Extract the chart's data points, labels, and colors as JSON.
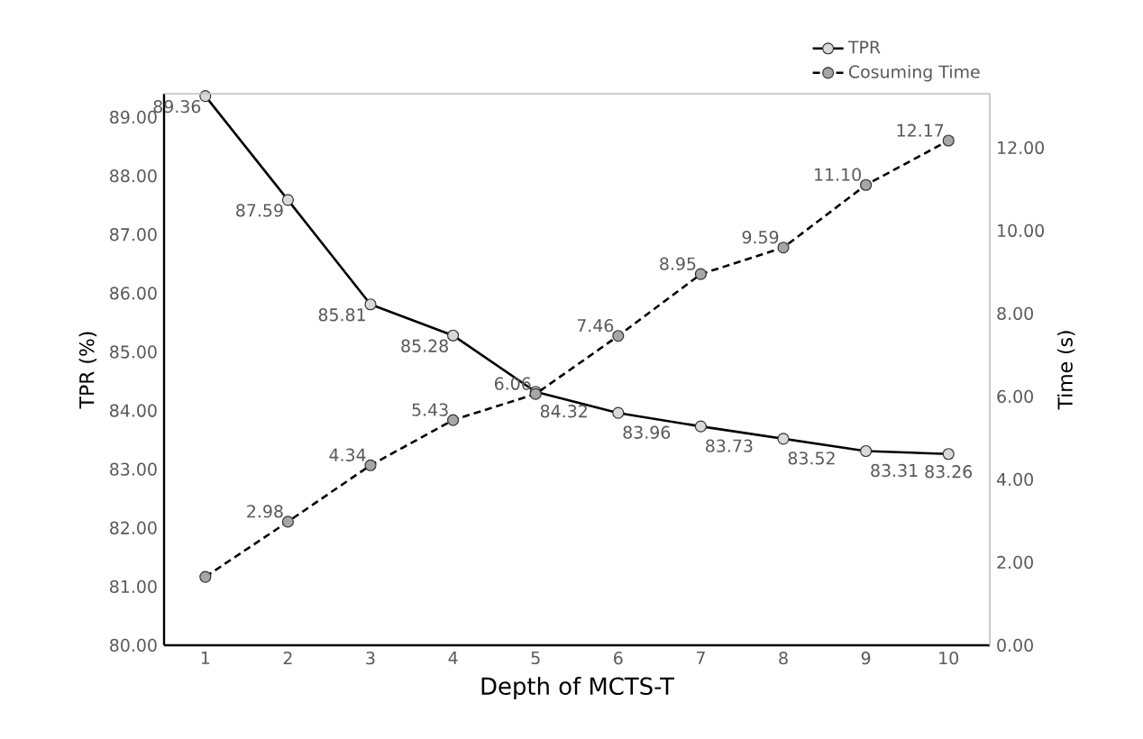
{
  "chart_data": {
    "type": "line",
    "xlabel": "Depth of MCTS-T",
    "ylabel": "TPR (%)",
    "y2label": "Time (s)",
    "categories": [
      "1",
      "2",
      "3",
      "4",
      "5",
      "6",
      "7",
      "8",
      "9",
      "10"
    ],
    "series": [
      {
        "name": "TPR",
        "color": "#d9d9d9",
        "line_style": "solid",
        "values": [
          89.36,
          87.59,
          85.81,
          85.28,
          84.32,
          83.96,
          83.73,
          83.52,
          83.31,
          83.26
        ],
        "value_labels": [
          "89.36",
          "87.59",
          "85.81",
          "85.28",
          "84.32",
          "83.96",
          "83.73",
          "83.52",
          "83.31",
          "83.26"
        ]
      },
      {
        "name": "Cosuming Time",
        "color": "#a6a6a6",
        "line_style": "dashed",
        "axis": "y2",
        "values": [
          1.65,
          2.98,
          4.34,
          5.43,
          6.06,
          7.46,
          8.95,
          9.59,
          11.1,
          12.17
        ],
        "value_labels": [
          null,
          "2.98",
          "4.34",
          "5.43",
          "6.06",
          "7.46",
          "8.95",
          "9.59",
          "11.10",
          "12.17"
        ]
      }
    ],
    "ylim": [
      80,
      89.4
    ],
    "yticks": [
      {
        "value": 80,
        "label": "80.00"
      },
      {
        "value": 81,
        "label": "81.00"
      },
      {
        "value": 82,
        "label": "82.00"
      },
      {
        "value": 83,
        "label": "83.00"
      },
      {
        "value": 84,
        "label": "84.00"
      },
      {
        "value": 85,
        "label": "85.00"
      },
      {
        "value": 86,
        "label": "86.00"
      },
      {
        "value": 87,
        "label": "87.00"
      },
      {
        "value": 88,
        "label": "88.00"
      },
      {
        "value": 89,
        "label": "89.00"
      }
    ],
    "y2lim": [
      0,
      13.3
    ],
    "y2ticks": [
      {
        "value": 0,
        "label": "0.00"
      },
      {
        "value": 2,
        "label": "2.00"
      },
      {
        "value": 4,
        "label": "4.00"
      },
      {
        "value": 6,
        "label": "6.00"
      },
      {
        "value": 8,
        "label": "8.00"
      },
      {
        "value": 10,
        "label": "10.00"
      },
      {
        "value": 12,
        "label": "12.00"
      }
    ],
    "marker": "circle",
    "legend": "top right",
    "grid": false
  }
}
